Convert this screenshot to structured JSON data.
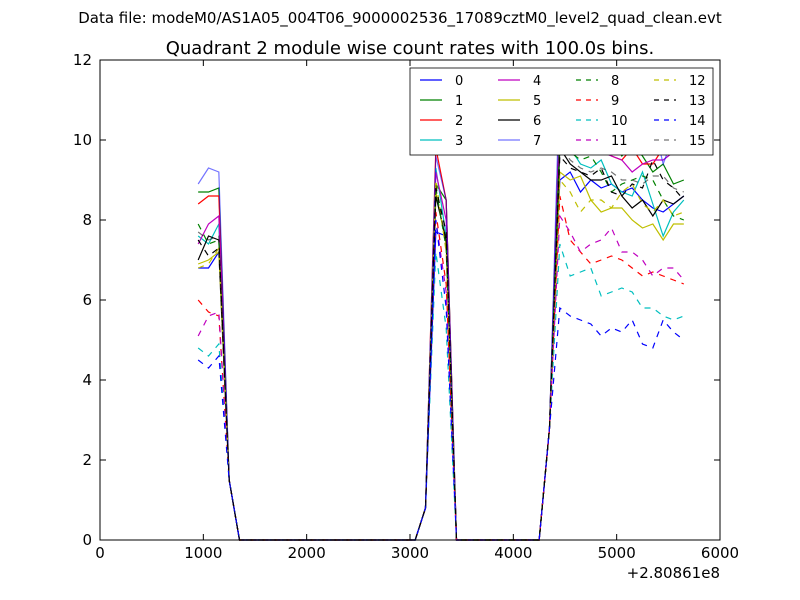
{
  "chart_data": {
    "type": "line",
    "suptitle": "Data file: modeM0/AS1A05_004T06_9000002536_17089cztM0_level2_quad_clean.evt",
    "title": "Quadrant 2 module wise count rates with 100.0s bins.",
    "xlabel": "",
    "ylabel": "",
    "x_offset_label": "+2.80861e8",
    "xlim": [
      0,
      6000
    ],
    "ylim": [
      0,
      12
    ],
    "xticks": [
      0,
      1000,
      2000,
      3000,
      4000,
      5000,
      6000
    ],
    "yticks": [
      0,
      2,
      4,
      6,
      8,
      10,
      12
    ],
    "legend_position": "top-right",
    "legend_columns": 4,
    "x": [
      950,
      1050,
      1150,
      1250,
      1350,
      1450,
      1550,
      1650,
      1750,
      1850,
      1950,
      2050,
      2150,
      2250,
      2350,
      2450,
      2550,
      2650,
      2750,
      2850,
      2950,
      3050,
      3150,
      3250,
      3350,
      3450,
      3550,
      3650,
      3750,
      3850,
      3950,
      4050,
      4150,
      4250,
      4350,
      4450,
      4550,
      4650,
      4750,
      4850,
      4950,
      5050,
      5150,
      5250,
      5350,
      5450,
      5550,
      5650
    ],
    "series": [
      {
        "name": "0",
        "color": "#0000ff",
        "dash": "solid",
        "peaks": [
          6.8,
          6.8,
          7.2,
          7.7,
          7.6,
          9.0,
          9.2,
          8.7,
          9.0,
          8.8,
          8.9,
          8.7,
          8.8,
          8.5,
          8.3,
          8.2,
          8.4,
          8.6,
          5.8
        ]
      },
      {
        "name": "1",
        "color": "#008000",
        "dash": "solid",
        "peaks": [
          8.7,
          8.7,
          8.8,
          8.9,
          8.5,
          10.9,
          10.5,
          10.0,
          10.3,
          10.1,
          10.0,
          9.6,
          9.9,
          9.6,
          9.2,
          9.4,
          8.9,
          9.0,
          6.3
        ]
      },
      {
        "name": "2",
        "color": "#ff0000",
        "dash": "solid",
        "peaks": [
          8.4,
          8.6,
          8.6,
          9.8,
          8.5,
          10.9,
          10.7,
          9.8,
          10.0,
          9.9,
          9.6,
          9.5,
          9.8,
          9.4,
          9.4,
          9.8,
          9.7,
          10.0,
          6.5
        ]
      },
      {
        "name": "3",
        "color": "#00bfbf",
        "dash": "solid",
        "peaks": [
          7.6,
          7.4,
          7.9,
          9.3,
          7.6,
          10.6,
          9.8,
          9.4,
          9.3,
          9.5,
          8.9,
          8.7,
          8.6,
          9.2,
          8.4,
          7.6,
          8.2,
          8.5,
          5.6
        ]
      },
      {
        "name": "4",
        "color": "#bf00bf",
        "dash": "solid",
        "peaks": [
          7.4,
          7.9,
          8.1,
          9.2,
          8.0,
          10.7,
          10.3,
          9.9,
          9.9,
          9.7,
          9.6,
          9.5,
          9.2,
          9.4,
          9.5,
          9.5,
          9.7,
          10.2,
          6.3
        ]
      },
      {
        "name": "5",
        "color": "#bfbf00",
        "dash": "solid",
        "peaks": [
          6.9,
          7.0,
          7.2,
          8.7,
          7.4,
          9.2,
          9.0,
          9.1,
          8.5,
          8.2,
          8.3,
          8.3,
          8.0,
          7.8,
          7.9,
          7.5,
          7.9,
          7.9,
          5.5
        ]
      },
      {
        "name": "6",
        "color": "#000000",
        "dash": "solid",
        "peaks": [
          7.0,
          7.6,
          7.5,
          8.6,
          7.5,
          9.8,
          9.4,
          9.2,
          9.0,
          9.0,
          9.1,
          8.6,
          8.3,
          8.5,
          8.1,
          8.5,
          8.4,
          8.6,
          5.3
        ]
      },
      {
        "name": "7",
        "color": "#0000ff",
        "dash": "solid",
        "light": true,
        "peaks": [
          8.9,
          9.3,
          9.2,
          9.6,
          8.5,
          11.7,
          11.2,
          11.4,
          10.9,
          11.0,
          11.1,
          11.2,
          10.4,
          10.5,
          10.5,
          9.4,
          10.1,
          10.0,
          6.0
        ]
      },
      {
        "name": "8",
        "color": "#008000",
        "dash": "dashed",
        "peaks": [
          7.9,
          7.4,
          7.5,
          8.8,
          7.3,
          10.1,
          9.7,
          9.5,
          9.6,
          9.2,
          8.7,
          8.9,
          9.0,
          9.1,
          9.0,
          8.5,
          8.1,
          8.0,
          5.9
        ]
      },
      {
        "name": "9",
        "color": "#ff0000",
        "dash": "dashed",
        "peaks": [
          6.0,
          5.7,
          5.6,
          8.2,
          6.4,
          8.6,
          7.5,
          7.2,
          6.9,
          7.0,
          7.1,
          7.0,
          6.8,
          6.6,
          6.7,
          6.6,
          6.5,
          6.4,
          4.6
        ]
      },
      {
        "name": "10",
        "color": "#00bfbf",
        "dash": "dashed",
        "peaks": [
          4.8,
          4.6,
          4.9,
          7.2,
          5.3,
          7.4,
          6.6,
          6.7,
          6.8,
          6.1,
          6.2,
          6.3,
          6.2,
          5.8,
          5.8,
          5.6,
          5.5,
          5.6,
          3.7
        ]
      },
      {
        "name": "11",
        "color": "#bf00bf",
        "dash": "dashed",
        "peaks": [
          5.1,
          5.6,
          5.7,
          8.0,
          6.2,
          8.1,
          7.7,
          7.2,
          7.4,
          7.5,
          7.8,
          7.2,
          7.2,
          7.0,
          6.6,
          6.8,
          6.8,
          6.5,
          4.8
        ]
      },
      {
        "name": "12",
        "color": "#bfbf00",
        "dash": "dashed",
        "peaks": [
          6.8,
          6.9,
          7.3,
          9.0,
          7.2,
          9.0,
          8.7,
          8.2,
          8.5,
          8.5,
          8.3,
          8.7,
          8.9,
          8.4,
          8.2,
          8.5,
          8.1,
          8.2,
          5.7
        ]
      },
      {
        "name": "13",
        "color": "#000000",
        "dash": "dashed",
        "peaks": [
          7.5,
          7.1,
          7.3,
          8.8,
          7.7,
          9.6,
          9.3,
          9.2,
          9.1,
          9.3,
          8.7,
          8.6,
          8.9,
          8.8,
          9.5,
          9.0,
          8.8,
          8.5,
          5.5
        ]
      },
      {
        "name": "14",
        "color": "#0000ff",
        "dash": "dashed",
        "peaks": [
          4.5,
          4.3,
          4.6,
          8.0,
          5.8,
          5.8,
          5.6,
          5.5,
          5.4,
          5.1,
          5.3,
          5.2,
          5.5,
          4.9,
          4.8,
          5.5,
          5.2,
          5.0,
          3.2
        ]
      },
      {
        "name": "15",
        "color": "#000000",
        "dash": "dashed",
        "light": true,
        "peaks": [
          7.7,
          7.5,
          7.6,
          8.9,
          7.4,
          9.9,
          9.5,
          9.3,
          9.2,
          9.3,
          9.2,
          9.0,
          9.0,
          8.9,
          9.1,
          9.1,
          8.8,
          8.7,
          5.9
        ]
      }
    ]
  }
}
